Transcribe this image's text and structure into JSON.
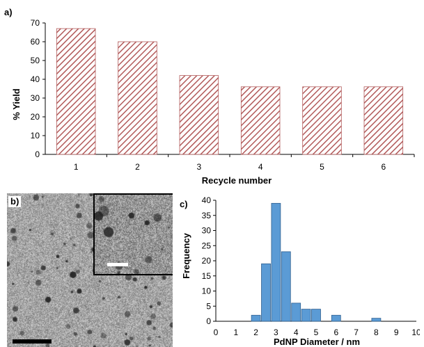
{
  "chart_data": [
    {
      "panel": "a)",
      "type": "bar",
      "categories": [
        "1",
        "2",
        "3",
        "4",
        "5",
        "6"
      ],
      "values": [
        67,
        60,
        42,
        36,
        36,
        36
      ],
      "xlabel": "Recycle number",
      "ylabel": "% Yield",
      "ylim": [
        0,
        70
      ],
      "yticks": [
        0,
        10,
        20,
        30,
        40,
        50,
        60,
        70
      ],
      "grid": false,
      "bar_fill": "diagonal hatch",
      "bar_color": "#b25a5a"
    },
    {
      "panel": "c)",
      "type": "bar",
      "x": [
        2,
        2.5,
        3,
        3.5,
        4,
        4.5,
        5,
        6,
        8
      ],
      "values": [
        2,
        19,
        39,
        23,
        6,
        4,
        4,
        2,
        1
      ],
      "xlabel": "PdNP Diameter / nm",
      "ylabel": "Frequency",
      "xlim": [
        0,
        10
      ],
      "ylim": [
        0,
        40
      ],
      "xticks": [
        0,
        1,
        2,
        3,
        4,
        5,
        6,
        7,
        8,
        9,
        10
      ],
      "yticks": [
        0,
        5,
        10,
        15,
        20,
        25,
        30,
        35,
        40
      ],
      "grid": false,
      "bar_color": "#5b9bd5"
    }
  ],
  "panel_b": {
    "label": "b)",
    "content": "TEM micrograph with inset"
  }
}
